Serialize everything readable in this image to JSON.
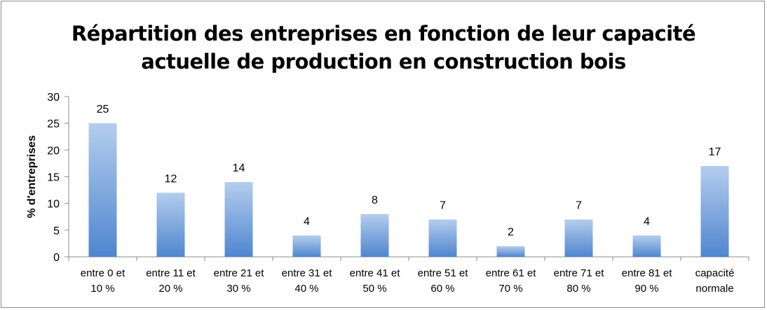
{
  "chart_data": {
    "type": "bar",
    "title": [
      "Répartition des entreprises en fonction de leur capacité",
      "actuelle de production en construction bois"
    ],
    "ylabel": "% d'entreprises",
    "xlabel": "",
    "ylim": [
      0,
      30
    ],
    "yticks": [
      0,
      5,
      10,
      15,
      20,
      25,
      30
    ],
    "grid": false,
    "legend": "none",
    "bar_color_top": "#b4cdee",
    "bar_color_bottom": "#4f86cf",
    "categories": [
      [
        "entre 0 et",
        "10 %"
      ],
      [
        "entre 11 et",
        "20 %"
      ],
      [
        "entre 21 et",
        "30 %"
      ],
      [
        "entre 31 et",
        "40 %"
      ],
      [
        "entre 41 et",
        "50 %"
      ],
      [
        "entre 51 et",
        "60 %"
      ],
      [
        "entre 61 et",
        "70 %"
      ],
      [
        "entre 71 et",
        "80 %"
      ],
      [
        "entre 81 et",
        "90 %"
      ],
      [
        "capacité",
        "normale"
      ]
    ],
    "values": [
      25,
      12,
      14,
      4,
      8,
      7,
      2,
      7,
      4,
      17
    ]
  }
}
